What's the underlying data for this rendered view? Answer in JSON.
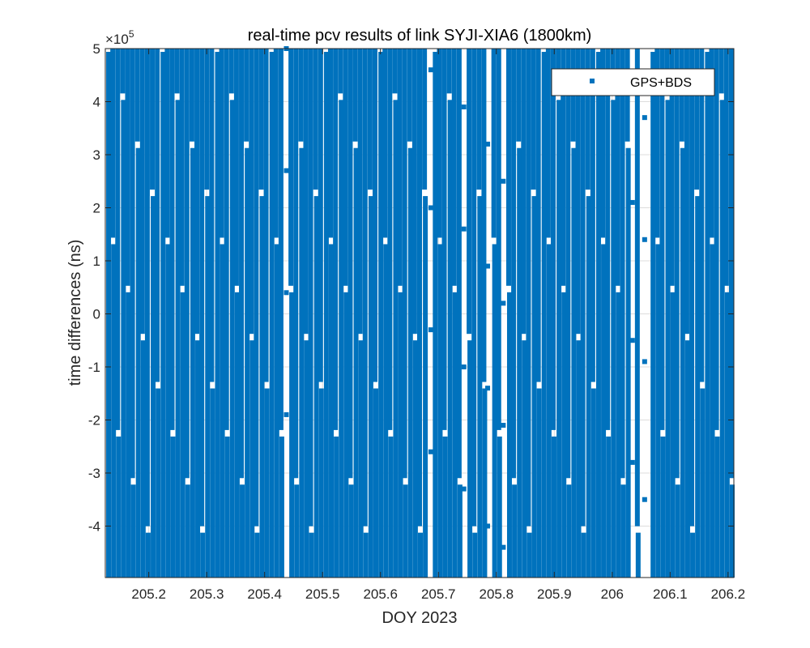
{
  "chart_data": {
    "type": "scatter",
    "title": "real-time pcv results of link SYJI-XIA6 (1800km)",
    "xlabel": "DOY 2023",
    "ylabel": "time differences (ns)",
    "y_exponent_base": "×10",
    "y_exponent_power": "5",
    "xlim": [
      205.125,
      206.21
    ],
    "ylim": [
      -4.97,
      5.0
    ],
    "y_scale_factor": 100000,
    "xticks": [
      205.2,
      205.3,
      205.4,
      205.5,
      205.6,
      205.7,
      205.8,
      205.9,
      206.0,
      206.1,
      206.2
    ],
    "xtick_labels": [
      "205.2",
      "205.3",
      "205.4",
      "205.5",
      "205.6",
      "205.7",
      "205.8",
      "205.9",
      "206",
      "206.1",
      "206.2"
    ],
    "yticks": [
      -4,
      -3,
      -2,
      -1,
      0,
      1,
      2,
      3,
      4,
      5
    ],
    "ytick_labels": [
      "-4",
      "-3",
      "-2",
      "-1",
      "0",
      "1",
      "2",
      "3",
      "4",
      "5"
    ],
    "grid": true,
    "legend_position": "top-right",
    "series": [
      {
        "name": "GPS+BDS",
        "color": "#0072BD",
        "marker": "square",
        "pattern": "sawtooth wrap between y limits, approx. 127 cycles over the x range",
        "stripe_count": 127,
        "gaps_x": [
          [
            205.431,
            205.444
          ],
          [
            205.681,
            205.693
          ],
          [
            205.738,
            205.75
          ],
          [
            205.78,
            205.79
          ],
          [
            205.808,
            205.816
          ],
          [
            206.028,
            206.042
          ],
          [
            206.05,
            206.062
          ]
        ]
      }
    ]
  }
}
